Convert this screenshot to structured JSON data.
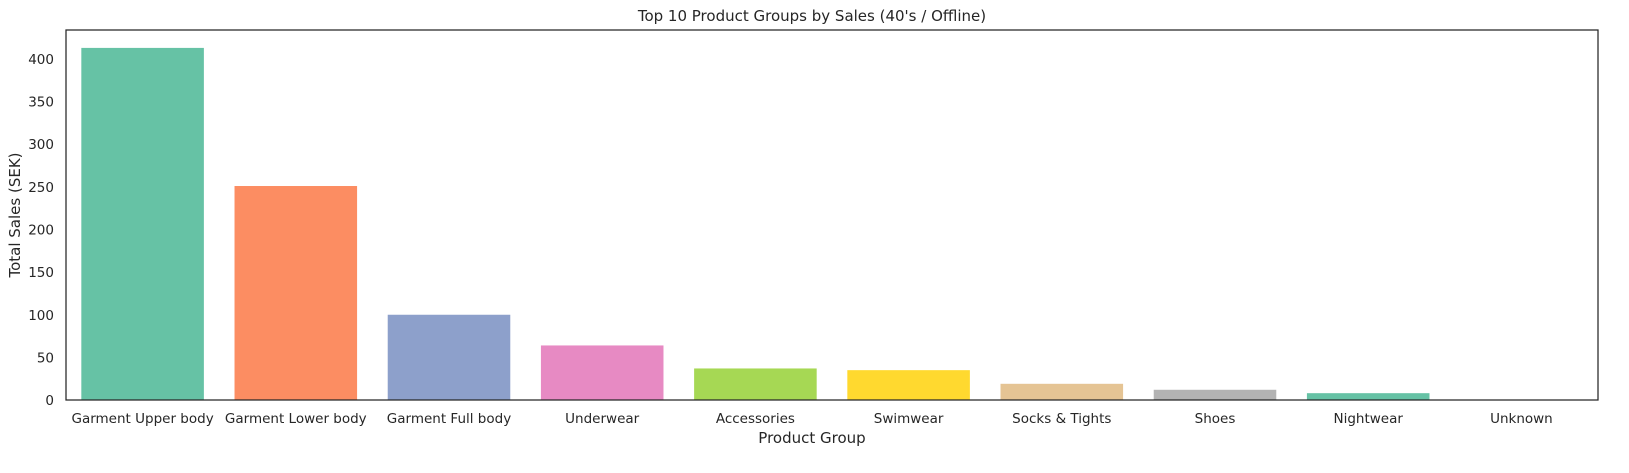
{
  "chart_data": {
    "type": "bar",
    "title": "Top 10 Product Groups by Sales (40's / Offline)",
    "xlabel": "Product Group",
    "ylabel": "Total Sales (SEK)",
    "categories": [
      "Garment Upper body",
      "Garment Lower body",
      "Garment Full body",
      "Underwear",
      "Accessories",
      "Swimwear",
      "Socks & Tights",
      "Shoes",
      "Nightwear",
      "Unknown"
    ],
    "values": [
      413,
      251,
      100,
      64,
      37,
      35,
      19,
      12,
      8,
      0.3
    ],
    "colors": [
      "#66c2a5",
      "#fc8d62",
      "#8da0cb",
      "#e78ac3",
      "#a6d854",
      "#ffd92f",
      "#e5c494",
      "#b3b3b3",
      "#66c2a5",
      "#fc8d62"
    ],
    "ylim": [
      0,
      434
    ],
    "yticks": [
      0,
      50,
      100,
      150,
      200,
      250,
      300,
      350,
      400
    ],
    "grid": false
  }
}
